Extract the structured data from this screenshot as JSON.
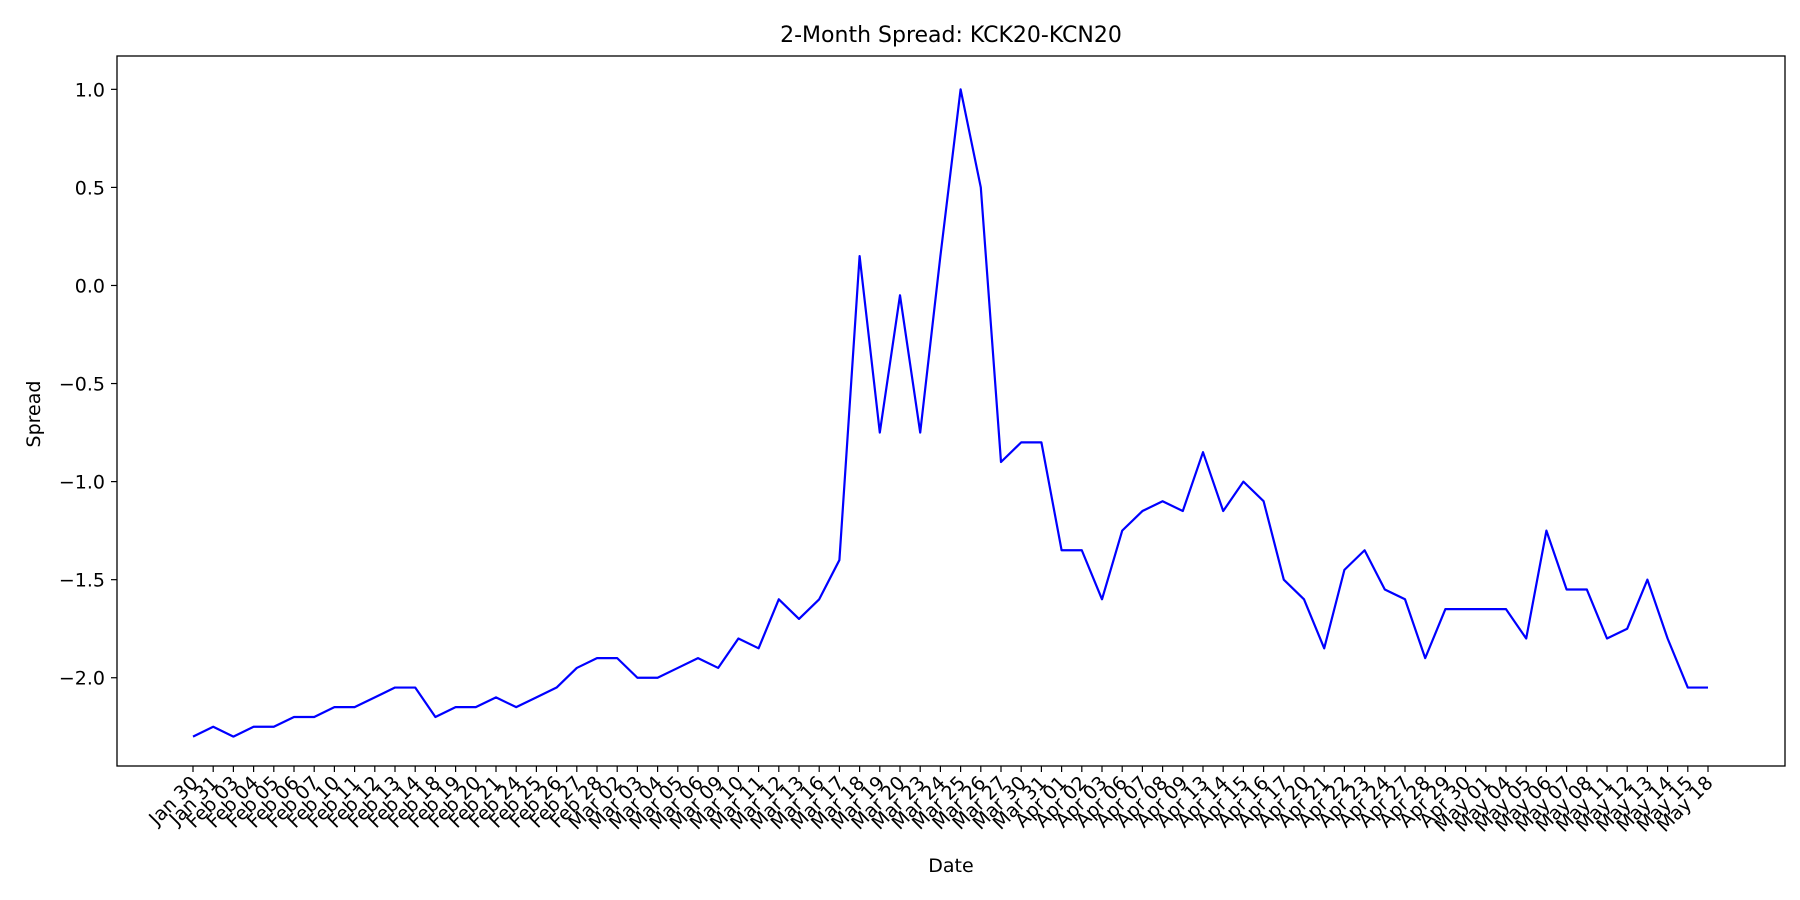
{
  "chart_data": {
    "type": "line",
    "title": "2-Month Spread: KCK20-KCN20",
    "xlabel": "Date",
    "ylabel": "Spread",
    "ylim": [
      -2.45,
      1.17
    ],
    "yticks": [
      1.0,
      0.5,
      0.0,
      -0.5,
      -1.0,
      -1.5,
      -2.0
    ],
    "ytick_labels": [
      "1.0",
      "0.5",
      "0.0",
      "−0.5",
      "−1.0",
      "−1.5",
      "−2.0"
    ],
    "grid": false,
    "legend": "none",
    "line_color": "#0000ff",
    "categories": [
      "Jan 30",
      "Jan 31",
      "Feb 03",
      "Feb 04",
      "Feb 05",
      "Feb 06",
      "Feb 07",
      "Feb 10",
      "Feb 11",
      "Feb 12",
      "Feb 13",
      "Feb 14",
      "Feb 18",
      "Feb 19",
      "Feb 20",
      "Feb 21",
      "Feb 24",
      "Feb 25",
      "Feb 26",
      "Feb 27",
      "Feb 28",
      "Mar 02",
      "Mar 03",
      "Mar 04",
      "Mar 05",
      "Mar 06",
      "Mar 09",
      "Mar 10",
      "Mar 11",
      "Mar 12",
      "Mar 13",
      "Mar 16",
      "Mar 17",
      "Mar 18",
      "Mar 19",
      "Mar 20",
      "Mar 23",
      "Mar 24",
      "Mar 25",
      "Mar 26",
      "Mar 27",
      "Mar 30",
      "Mar 31",
      "Apr 01",
      "Apr 02",
      "Apr 03",
      "Apr 06",
      "Apr 07",
      "Apr 08",
      "Apr 09",
      "Apr 13",
      "Apr 14",
      "Apr 15",
      "Apr 16",
      "Apr 17",
      "Apr 20",
      "Apr 21",
      "Apr 22",
      "Apr 23",
      "Apr 24",
      "Apr 27",
      "Apr 28",
      "Apr 29",
      "Apr 30",
      "May 01",
      "May 04",
      "May 05",
      "May 06",
      "May 07",
      "May 08",
      "May 11",
      "May 12",
      "May 13",
      "May 14",
      "May 15",
      "May 18"
    ],
    "values": [
      -2.3,
      -2.25,
      -2.3,
      -2.25,
      -2.25,
      -2.2,
      -2.2,
      -2.15,
      -2.15,
      -2.1,
      -2.05,
      -2.05,
      -2.2,
      -2.15,
      -2.15,
      -2.1,
      -2.15,
      -2.1,
      -2.05,
      -1.95,
      -1.9,
      -1.9,
      -2.0,
      -2.0,
      -1.95,
      -1.9,
      -1.95,
      -1.8,
      -1.85,
      -1.6,
      -1.7,
      -1.6,
      -1.4,
      0.15,
      -0.75,
      -0.05,
      -0.75,
      0.15,
      1.0,
      0.5,
      -0.9,
      -0.8,
      -0.8,
      -1.35,
      -1.35,
      -1.6,
      -1.25,
      -1.15,
      -1.1,
      -1.15,
      -0.85,
      -1.15,
      -1.0,
      -1.1,
      -1.5,
      -1.6,
      -1.85,
      -1.45,
      -1.35,
      -1.55,
      -1.6,
      -1.9,
      -1.65,
      -1.65,
      -1.65,
      -1.65,
      -1.8,
      -1.25,
      -1.55,
      -1.55,
      -1.8,
      -1.75,
      -1.5,
      -1.8,
      -2.05,
      -2.05
    ]
  }
}
